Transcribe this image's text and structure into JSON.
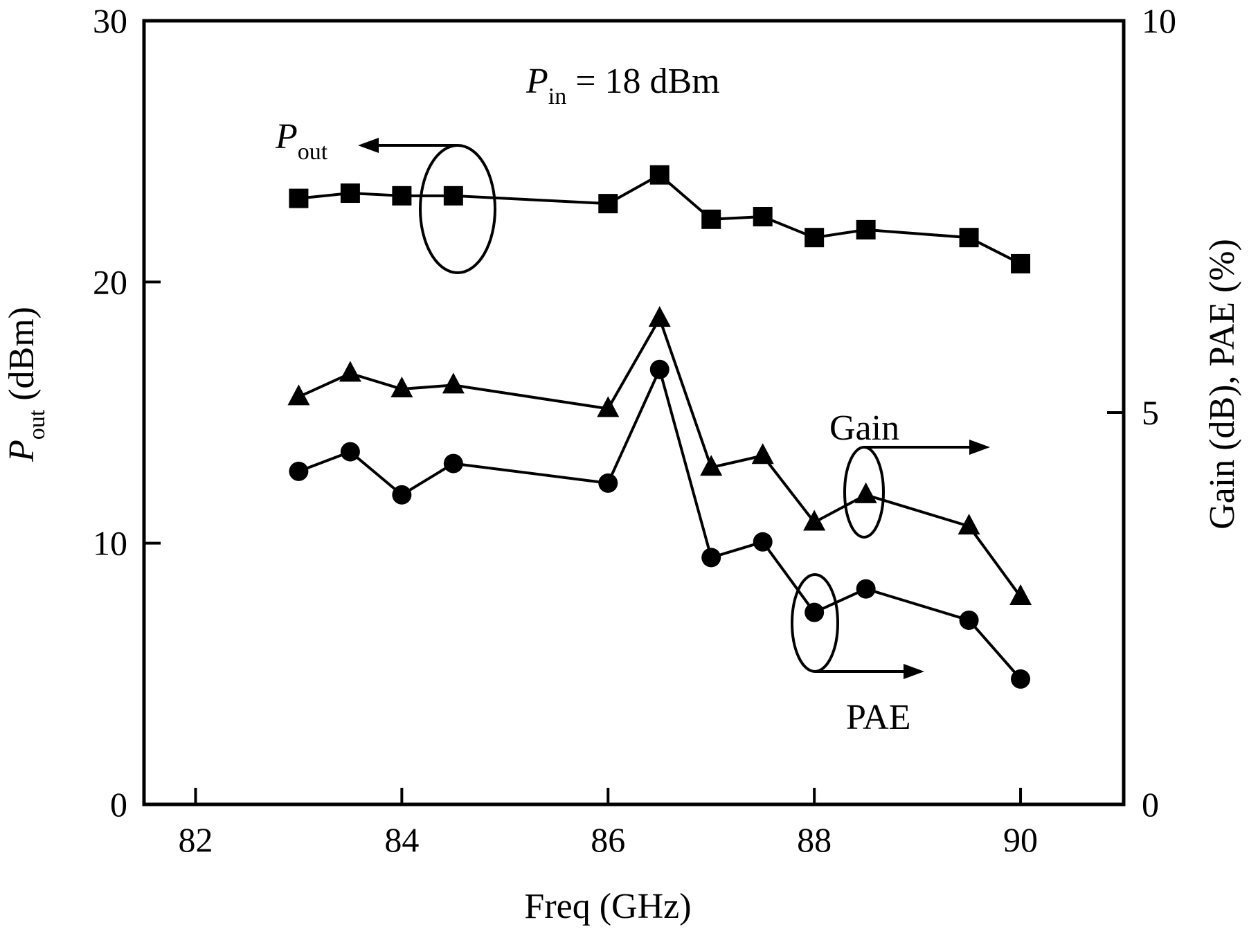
{
  "chart_data": {
    "type": "line",
    "annotation": {
      "prefix": "P",
      "sub": "in",
      "rest": " = 18 dBm"
    },
    "xlabel": "Freq (GHz)",
    "ylabel_left": {
      "prefix": "P",
      "sub": "out",
      "rest": " (dBm)"
    },
    "ylabel_right": "Gain (dB), PAE (%)",
    "xlim": [
      81.5,
      91
    ],
    "xticks": [
      82,
      84,
      86,
      88,
      90
    ],
    "ylim_left": [
      0,
      30
    ],
    "yticks_left": [
      0,
      10,
      20,
      30
    ],
    "ylim_right": [
      0,
      10
    ],
    "yticks_right": [
      0,
      5,
      10
    ],
    "grid": false,
    "series": [
      {
        "name_prefix": "P",
        "name_sub": "out",
        "axis": "left",
        "marker": "square",
        "x": [
          83,
          83.5,
          84,
          84.5,
          86,
          86.5,
          87,
          87.5,
          88,
          88.5,
          89.5,
          90
        ],
        "y": [
          23.2,
          23.4,
          23.3,
          23.3,
          23.0,
          24.1,
          22.4,
          22.5,
          21.7,
          22.0,
          21.7,
          20.7
        ]
      },
      {
        "name": "Gain",
        "axis": "right",
        "marker": "triangle",
        "x": [
          83,
          83.5,
          84,
          84.5,
          86,
          86.5,
          87,
          87.5,
          88,
          88.5,
          89.5,
          90
        ],
        "y": [
          5.2,
          5.5,
          5.3,
          5.35,
          5.05,
          6.2,
          4.3,
          4.45,
          3.6,
          3.95,
          3.55,
          2.65
        ]
      },
      {
        "name": "PAE",
        "axis": "right",
        "marker": "circle",
        "x": [
          83,
          83.5,
          84,
          84.5,
          86,
          86.5,
          87,
          87.5,
          88,
          88.5,
          89.5,
          90
        ],
        "y": [
          4.25,
          4.5,
          3.95,
          4.35,
          4.1,
          5.55,
          3.15,
          3.35,
          2.45,
          2.75,
          2.35,
          1.6
        ]
      }
    ]
  }
}
